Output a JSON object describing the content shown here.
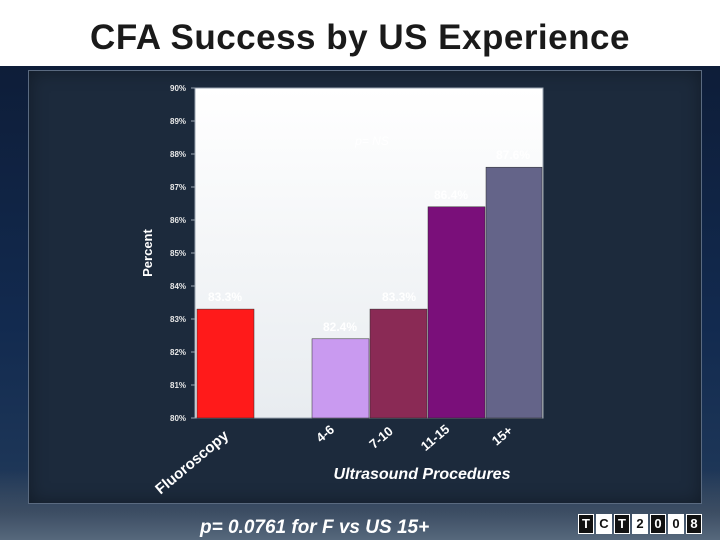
{
  "slide": {
    "title": "CFA Success by US Experience",
    "footnote": "p= 0.0761 for F vs US 15+",
    "logo_letters": [
      "T",
      "C",
      "T",
      "2",
      "0",
      "0",
      "8"
    ]
  },
  "chart_data": {
    "type": "bar",
    "title": "CFA Success by US Experience",
    "xlabel": "Ultrasound Procedures",
    "ylabel": "Percent",
    "annotation": "p= NS",
    "ylim": [
      80,
      90
    ],
    "yticks": [
      80,
      81,
      82,
      83,
      84,
      85,
      86,
      87,
      88,
      89,
      90
    ],
    "ytick_labels": [
      "80%",
      "81%",
      "82%",
      "83%",
      "84%",
      "85%",
      "86%",
      "87%",
      "88%",
      "89%",
      "90%"
    ],
    "categories": [
      "Fluoroscopy",
      "4-6",
      "7-10",
      "11-15",
      "15+"
    ],
    "values": [
      83.3,
      82.4,
      83.3,
      86.4,
      87.6
    ],
    "value_labels": [
      "83.3%",
      "82.4%",
      "83.3%",
      "86.4%",
      "87.6%"
    ],
    "colors": [
      "#ff1a1a",
      "#c99af0",
      "#8a2a55",
      "#7a0f7a",
      "#646489"
    ],
    "grid": false
  }
}
